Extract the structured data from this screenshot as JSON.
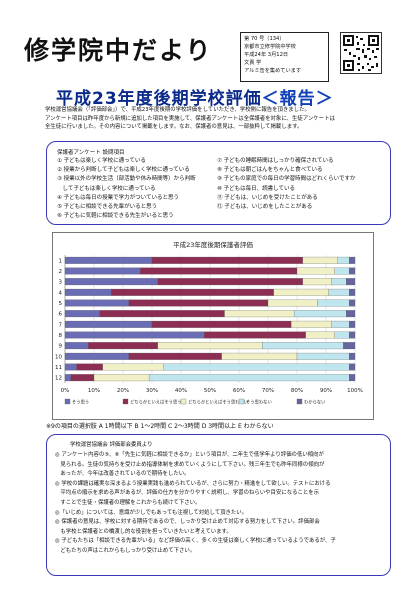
{
  "newsletter_title": "修学院中だより",
  "info": {
    "issue": "第 70 号（134）",
    "school": "京都市立修学院中学校",
    "date": "平成24年 3月12日",
    "issuer": "文責 学",
    "note": "アルミ缶を集めています"
  },
  "headline": {
    "main": "平成23年度後期学校評価",
    "sub": "＜報告＞"
  },
  "intro_lines": [
    "学校運営協議会（「評価部会」）で、平成23年度後期の学校評価をしていただき、学校側に報告を頂きました。",
    "アンケート項目は昨年度から新規に追加した項目を実施して、保護者アンケートは全保護者を対象に、生徒アンケートは",
    "全生徒に行いました。その内容について掲載をします。なお、保護者の意見は、一部抜粋して掲載します。"
  ],
  "questions": {
    "heading": "保護者アンケート 設問項目",
    "left": [
      "① 子どもは楽しく学校に通っている",
      "② 授業から判断して子どもは楽しく学校に通っている",
      "③ 授業以外の学校生活（部活動や休み時間等）から判断",
      "　して子どもは楽しく学校に通っている",
      "④ 子どもは毎日の授業で学力がついていると思う",
      "⑤ 子どもに相談できる先輩がいると思う",
      "⑥ 子どもに気軽に相談できる先生がいると思う"
    ],
    "right": [
      "⑦ 子どもの睡眠時間はしっかり確保されている",
      "⑧ 子どもは朝ごはんをちゃんと食べている",
      "⑨ 子どもの家庭での毎日の学習時間はどれくらいですか",
      "⑩ 子どもは毎日、読書している",
      "⑪ 子どもは、いじめを受けたことがある",
      "⑫ 子どもは、いじめをしたことがある"
    ]
  },
  "chart_data": {
    "type": "bar",
    "stacked": true,
    "title": "平成23年度後期保護者評価",
    "categories": [
      "1",
      "2",
      "3",
      "4",
      "5",
      "6",
      "7",
      "8",
      "9",
      "10",
      "11",
      "12"
    ],
    "series": [
      {
        "name": "そう思う",
        "color": "#6a6cb4",
        "values": [
          30,
          26,
          32,
          16,
          22,
          12,
          30,
          48,
          8,
          22,
          4,
          2
        ]
      },
      {
        "name": "どちらかといえばそう思う",
        "color": "#8c2e54",
        "values": [
          52,
          54,
          50,
          56,
          48,
          43,
          48,
          35,
          24,
          32,
          9,
          8
        ]
      },
      {
        "name": "どちらかといえばそう思わない",
        "color": "#f0efc6",
        "values": [
          12,
          13,
          10,
          19,
          17,
          24,
          14,
          10,
          36,
          26,
          21,
          19
        ]
      },
      {
        "name": "そう思わない",
        "color": "#bfe6ee",
        "values": [
          4,
          5,
          5,
          7,
          11,
          18,
          6,
          5,
          28,
          18,
          64,
          69
        ]
      },
      {
        "name": "わからない",
        "color": "#66669e",
        "values": [
          2,
          2,
          3,
          2,
          2,
          3,
          2,
          2,
          4,
          2,
          2,
          2
        ]
      }
    ],
    "xlim": [
      0,
      100
    ],
    "xticks": [
      "0%",
      "10%",
      "20%",
      "30%",
      "40%",
      "50%",
      "60%",
      "70%",
      "80%",
      "90%",
      "100%"
    ]
  },
  "footnote": "※9の項目の選択肢 A 1時間以下 B 1～2時間 C 2～3時間 D 3時間以上 E わからない",
  "comments": {
    "heading": "学校運営協議会 評価部会委員より",
    "lines": [
      "◎ アンケート内容の⑤、⑥「先生に気軽に相談できるか」という項目が、二年生で低学年より評価の低い傾向が",
      "　見られる。生徒の気持ちを受け止め指導体制を求めていくようにして下さい。残三年生でも昨年同様の傾向が",
      "　あったが、今年は改善されているので期待をしたい。",
      "◎ 学校の課題は確実な深まるよう授業実践も進められているが、さらに努力・精進をして欲しい。テストにおける",
      "　平均点の順示を求める声があるが、評価の仕方を分かりやすく説明し、学習のねらいや目安になることを示",
      "　すことで生徒・保護者の理解をこれからも続けて下さい。",
      "◎「いじめ」については、意識が少しでもあっても注視して対処して頂きたい。",
      "◎ 保護者の意見は、学校に対する期待であるので、しっかり受け止めて対応する努力をして下さい。評価部会",
      "　も学校と保護者との橋渡し的な役割を担っていきたいと考えています。",
      "◎ 子どもたちは「相談できる先輩がいる」など評価の高く、多くの生徒は楽しく学校に通っているようであるが、子",
      "　どもたちの声はこれからもしっかり受け止めて下さい。"
    ]
  }
}
